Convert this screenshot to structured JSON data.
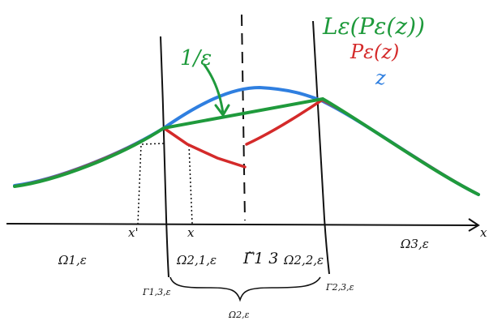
{
  "legend": {
    "green_label": "Lε(Pε(z))",
    "red_label": "Pε(z)",
    "blue_label": "z"
  },
  "annotation": {
    "slope_label": "1/ε"
  },
  "axis": {
    "x_axis_label": "x"
  },
  "points": {
    "x_prime": "x'",
    "x": "x"
  },
  "regions": {
    "omega_1": "Ω1,ε",
    "omega_21": "Ω2,1,ε",
    "gamma_tilde_13": "Γ̃1 3",
    "omega_22": "Ω2,2,ε",
    "omega_3": "Ω3,ε",
    "omega_2": "Ω2,ε"
  },
  "boundaries": {
    "gamma_13": "Γ1,3,ε",
    "gamma_23": "Γ2,3,ε"
  },
  "colors": {
    "green": "#1f9a3c",
    "red": "#d42a2a",
    "blue": "#2f7fe0",
    "ink": "#111111"
  }
}
